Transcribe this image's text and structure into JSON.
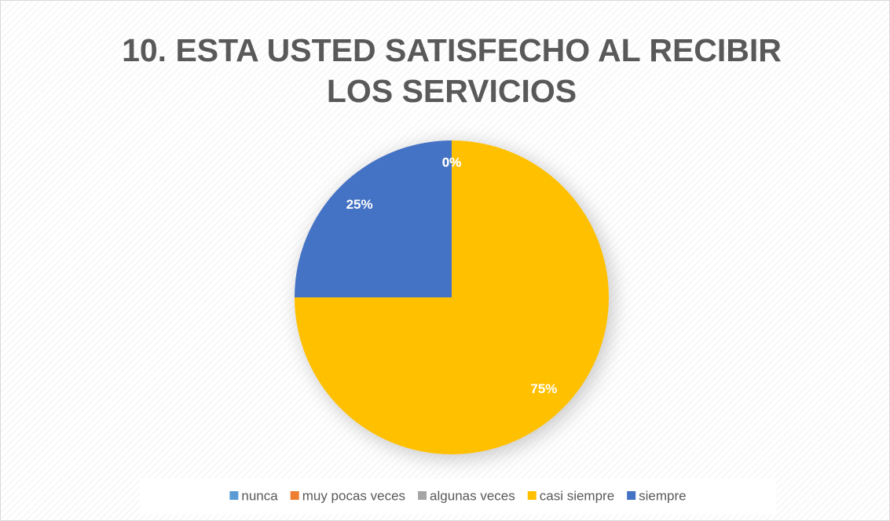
{
  "chart_data": {
    "type": "pie",
    "title": "10. ESTA USTED SATISFECHO AL RECIBIR LOS SERVICIOS",
    "categories": [
      "nunca",
      "muy pocas veces",
      "algunas veces",
      "casi siempre",
      "siempre"
    ],
    "values": [
      0,
      0,
      0,
      75,
      25
    ],
    "value_labels": [
      "0%",
      "0%",
      "0%",
      "75%",
      "25%"
    ],
    "colors": [
      "#5b9bd5",
      "#ed7d31",
      "#a5a5a5",
      "#ffc000",
      "#4472c4"
    ],
    "legend": "bottom"
  }
}
